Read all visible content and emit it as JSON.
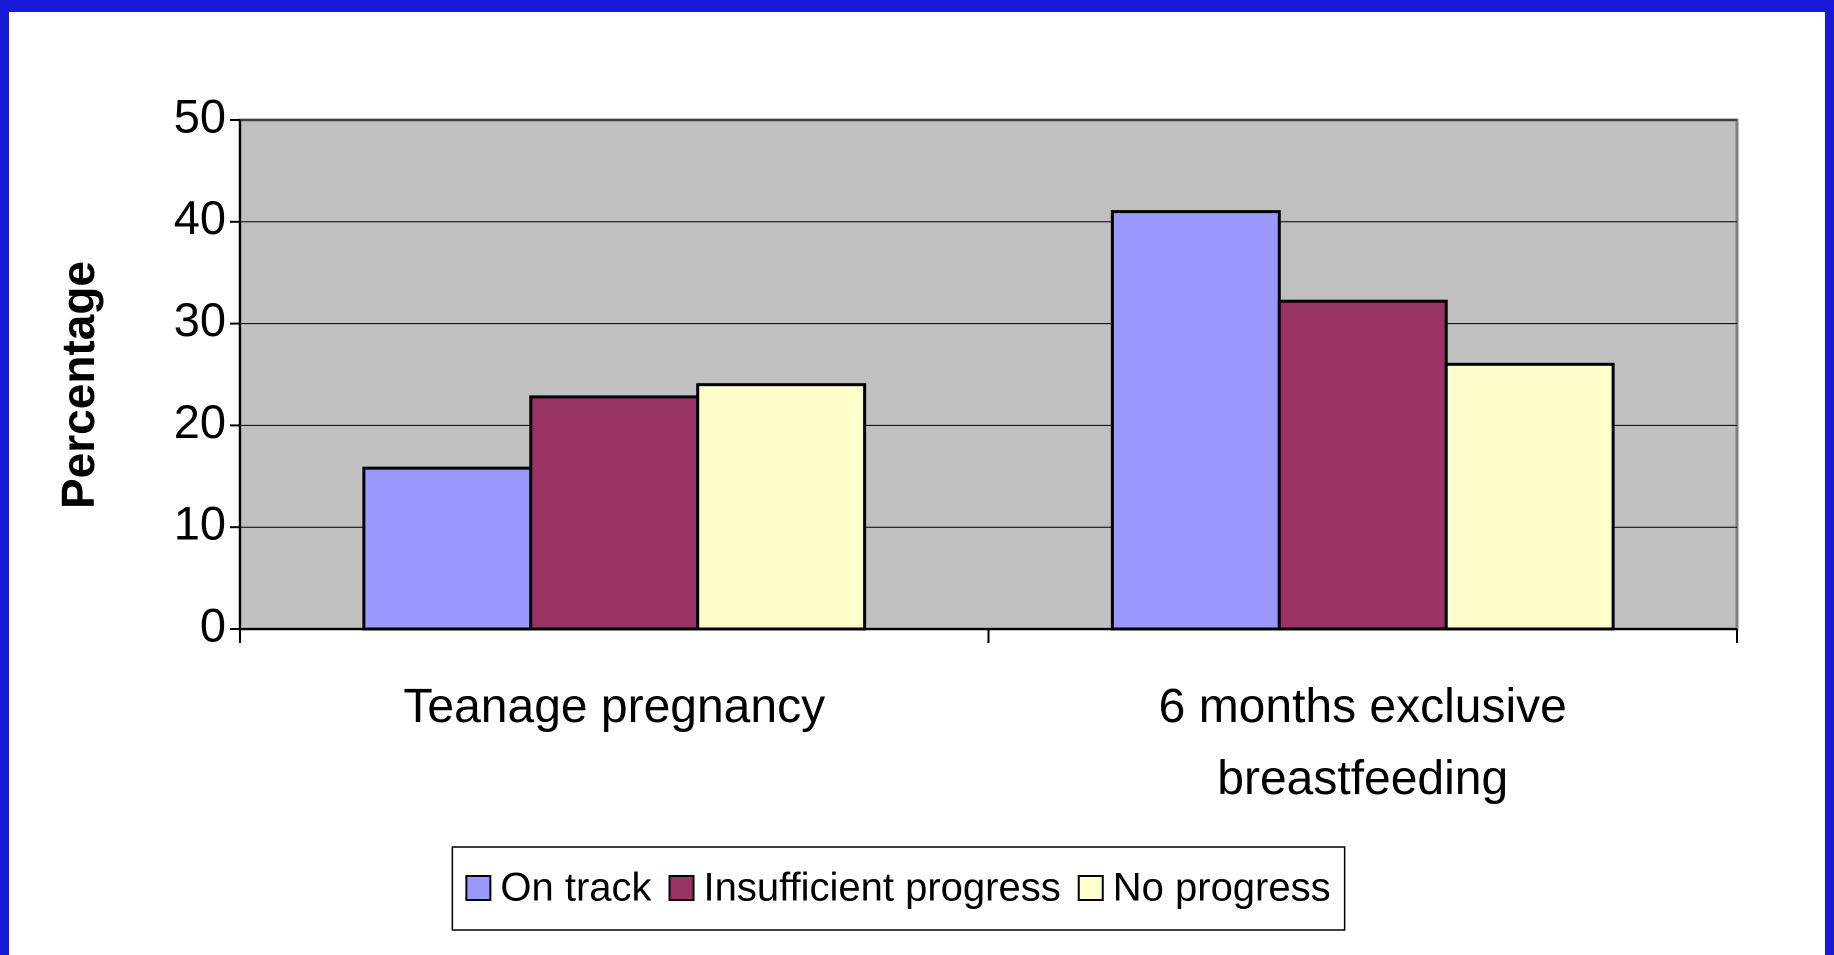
{
  "chart_data": {
    "type": "bar",
    "ylabel": "Percentage",
    "categories": [
      "Teanage pregnancy",
      "6 months exclusive breastfeeding"
    ],
    "series": [
      {
        "name": "On track",
        "color": "#9999ff",
        "values": [
          15.8,
          41
        ]
      },
      {
        "name": "Insufficient progress",
        "color": "#993366",
        "values": [
          22.8,
          32.2
        ]
      },
      {
        "name": "No progress",
        "color": "#ffffcc",
        "values": [
          24,
          26
        ]
      }
    ],
    "ylim": [
      0,
      50
    ],
    "yticks": [
      0,
      10,
      20,
      30,
      40,
      50
    ],
    "grid": true,
    "legend": "bottom"
  }
}
